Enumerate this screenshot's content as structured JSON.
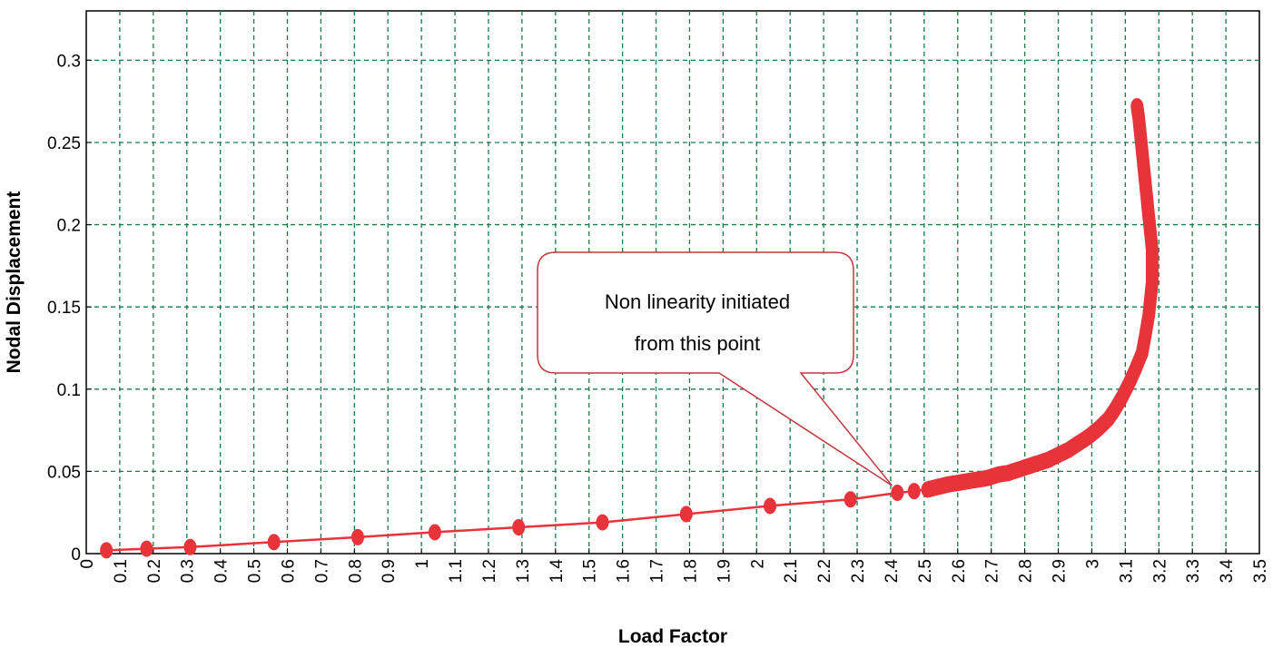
{
  "chart_data": {
    "type": "scatter",
    "title": "",
    "xlabel": "Load Factor",
    "ylabel": "Nodal Displacement",
    "xlim": [
      0,
      3.5
    ],
    "ylim": [
      0,
      0.33
    ],
    "x_ticks": [
      "0",
      "0.1",
      "0.2",
      "0.3",
      "0.4",
      "0.5",
      "0.6",
      "0.7",
      "0.8",
      "0.9",
      "1",
      "1.1",
      "1.2",
      "1.3",
      "1.4",
      "1.5",
      "1.6",
      "1.7",
      "1.8",
      "1.9",
      "2",
      "2.1",
      "2.2",
      "2.3",
      "2.4",
      "2.5",
      "2.6",
      "2.7",
      "2.8",
      "2.9",
      "3",
      "3.1",
      "3.2",
      "3.3",
      "3.4",
      "3.5"
    ],
    "y_ticks": [
      "0",
      "0.05",
      "0.1",
      "0.15",
      "0.2",
      "0.25",
      "0.3"
    ],
    "grid": true,
    "legend": "none",
    "series": [
      {
        "color": "#e8333b",
        "points": [
          [
            0.06,
            0.002
          ],
          [
            0.18,
            0.003
          ],
          [
            0.31,
            0.004
          ],
          [
            0.56,
            0.007
          ],
          [
            0.81,
            0.01
          ],
          [
            1.04,
            0.013
          ],
          [
            1.29,
            0.016
          ],
          [
            1.54,
            0.019
          ],
          [
            1.79,
            0.024
          ],
          [
            2.04,
            0.029
          ],
          [
            2.28,
            0.033
          ],
          [
            2.42,
            0.037
          ],
          [
            2.47,
            0.038
          ],
          [
            2.51,
            0.039
          ],
          [
            2.53,
            0.04
          ],
          [
            2.55,
            0.041
          ],
          [
            2.57,
            0.042
          ],
          [
            2.6,
            0.043
          ],
          [
            2.63,
            0.044
          ],
          [
            2.66,
            0.045
          ],
          [
            2.69,
            0.046
          ],
          [
            2.72,
            0.048
          ],
          [
            2.75,
            0.049
          ],
          [
            2.78,
            0.051
          ],
          [
            2.81,
            0.053
          ],
          [
            2.84,
            0.055
          ],
          [
            2.87,
            0.057
          ],
          [
            2.9,
            0.06
          ],
          [
            2.93,
            0.063
          ],
          [
            2.96,
            0.067
          ],
          [
            2.99,
            0.071
          ],
          [
            3.02,
            0.076
          ],
          [
            3.05,
            0.082
          ],
          [
            3.07,
            0.088
          ],
          [
            3.09,
            0.095
          ],
          [
            3.11,
            0.103
          ],
          [
            3.13,
            0.112
          ],
          [
            3.15,
            0.122
          ],
          [
            3.16,
            0.133
          ],
          [
            3.17,
            0.145
          ],
          [
            3.175,
            0.155
          ],
          [
            3.18,
            0.165
          ],
          [
            3.18,
            0.175
          ],
          [
            3.18,
            0.185
          ],
          [
            3.175,
            0.195
          ],
          [
            3.17,
            0.205
          ],
          [
            3.165,
            0.215
          ],
          [
            3.16,
            0.225
          ],
          [
            3.155,
            0.235
          ],
          [
            3.15,
            0.245
          ],
          [
            3.145,
            0.255
          ],
          [
            3.14,
            0.265
          ],
          [
            3.135,
            0.272
          ]
        ]
      }
    ],
    "annotations": [
      {
        "text_lines": [
          "Non linearity initiated",
          "from this point"
        ],
        "x": 2.42,
        "y": 0.037
      }
    ]
  }
}
